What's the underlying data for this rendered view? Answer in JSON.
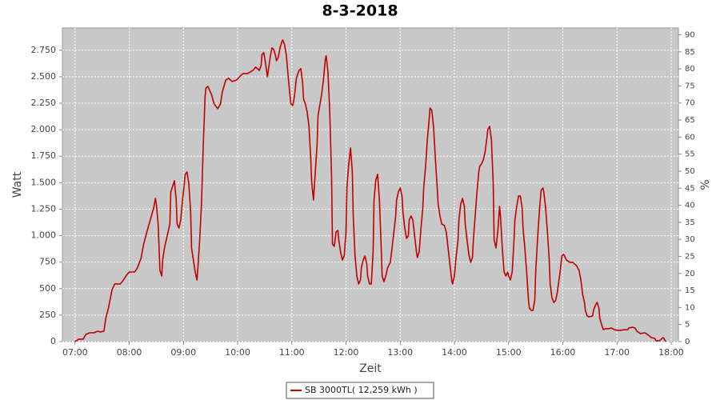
{
  "chart_data": {
    "type": "line",
    "title": "8-3-2018",
    "x_label": "Zeit",
    "y_label": "Watt",
    "y2_label": "%",
    "grid": true,
    "legend": "bottom",
    "xlim": [
      406,
      1088
    ],
    "xticks": [
      {
        "value": 420,
        "label": "07:00"
      },
      {
        "value": 480,
        "label": "08:00"
      },
      {
        "value": 540,
        "label": "09:00"
      },
      {
        "value": 600,
        "label": "10:00"
      },
      {
        "value": 660,
        "label": "11:00"
      },
      {
        "value": 720,
        "label": "12:00"
      },
      {
        "value": 780,
        "label": "13:00"
      },
      {
        "value": 840,
        "label": "14:00"
      },
      {
        "value": 900,
        "label": "15:00"
      },
      {
        "value": 960,
        "label": "16:00"
      },
      {
        "value": 1020,
        "label": "17:00"
      },
      {
        "value": 1080,
        "label": "18:00"
      }
    ],
    "ylim": [
      0,
      2960
    ],
    "yticks": [
      0,
      250,
      500,
      750,
      {
        "value": 1000,
        "label": "1.000"
      },
      {
        "value": 1250,
        "label": "1.250"
      },
      {
        "value": 1500,
        "label": "1.500"
      },
      {
        "value": 1750,
        "label": "1.750"
      },
      {
        "value": 2000,
        "label": "2.000"
      },
      {
        "value": 2250,
        "label": "2.250"
      },
      {
        "value": 2500,
        "label": "2.500"
      },
      {
        "value": 2750,
        "label": "2.750"
      }
    ],
    "y2lim": [
      0,
      92
    ],
    "y2ticks": [
      0,
      5,
      10,
      15,
      20,
      25,
      30,
      35,
      40,
      45,
      50,
      55,
      60,
      65,
      70,
      75,
      80,
      85,
      90
    ],
    "x": [
      420,
      424,
      429,
      432,
      436,
      441,
      445,
      448,
      452,
      454,
      457,
      461,
      464,
      470,
      473,
      477,
      480,
      486,
      489,
      493,
      496,
      500,
      503,
      507,
      509,
      510,
      512,
      514,
      516,
      517,
      519,
      523,
      525,
      526,
      530,
      532,
      533,
      535,
      537,
      539,
      541,
      542,
      544,
      546,
      548,
      549,
      553,
      555,
      556,
      558,
      560,
      562,
      564,
      565,
      567,
      571,
      574,
      578,
      581,
      583,
      587,
      590,
      594,
      599,
      603,
      606,
      611,
      617,
      620,
      624,
      626,
      627,
      629,
      631,
      633,
      634,
      636,
      638,
      640,
      642,
      643,
      645,
      647,
      649,
      650,
      652,
      654,
      656,
      658,
      659,
      661,
      663,
      665,
      668,
      670,
      672,
      673,
      675,
      677,
      679,
      681,
      682,
      684,
      686,
      688,
      689,
      693,
      695,
      697,
      698,
      700,
      702,
      704,
      705,
      707,
      709,
      711,
      712,
      714,
      716,
      718,
      720,
      721,
      723,
      725,
      727,
      728,
      730,
      732,
      734,
      736,
      737,
      739,
      741,
      743,
      744,
      746,
      748,
      750,
      751,
      753,
      755,
      757,
      759,
      760,
      762,
      764,
      766,
      769,
      771,
      773,
      775,
      776,
      778,
      780,
      782,
      783,
      785,
      787,
      789,
      790,
      792,
      794,
      796,
      798,
      799,
      801,
      803,
      805,
      806,
      808,
      810,
      812,
      813,
      815,
      817,
      819,
      821,
      822,
      824,
      826,
      829,
      831,
      833,
      835,
      837,
      838,
      840,
      842,
      844,
      845,
      847,
      849,
      851,
      852,
      854,
      856,
      858,
      860,
      861,
      863,
      865,
      867,
      868,
      870,
      872,
      874,
      876,
      877,
      879,
      881,
      883,
      884,
      886,
      888,
      890,
      891,
      893,
      895,
      897,
      899,
      900,
      902,
      904,
      906,
      907,
      909,
      911,
      913,
      915,
      916,
      918,
      920,
      922,
      923,
      925,
      927,
      929,
      930,
      932,
      934,
      936,
      938,
      939,
      941,
      943,
      945,
      946,
      948,
      950,
      952,
      954,
      957,
      959,
      961,
      962,
      964,
      968,
      971,
      975,
      978,
      980,
      982,
      984,
      985,
      987,
      989,
      993,
      994,
      996,
      998,
      1000,
      1001,
      1003,
      1005,
      1007,
      1010,
      1014,
      1017,
      1021,
      1024,
      1028,
      1032,
      1033,
      1037,
      1040,
      1042,
      1046,
      1051,
      1055,
      1058,
      1062,
      1063,
      1067,
      1071,
      1072,
      1074
    ],
    "series": [
      {
        "name": "SB 3000TL( 12,259 kWh )",
        "color": "#c00000",
        "values": [
          0,
          23,
          23,
          68,
          83,
          83,
          98,
          91,
          98,
          219,
          317,
          491,
          544,
          544,
          574,
          627,
          657,
          657,
          695,
          785,
          921,
          1050,
          1140,
          1261,
          1352,
          1299,
          1110,
          672,
          619,
          770,
          884,
          1035,
          1110,
          1412,
          1518,
          1337,
          1110,
          1072,
          1148,
          1337,
          1488,
          1579,
          1601,
          1488,
          1224,
          884,
          657,
          582,
          695,
          959,
          1299,
          1865,
          2319,
          2394,
          2409,
          2334,
          2243,
          2198,
          2243,
          2356,
          2470,
          2485,
          2455,
          2470,
          2508,
          2530,
          2530,
          2560,
          2591,
          2560,
          2606,
          2712,
          2727,
          2621,
          2500,
          2560,
          2682,
          2772,
          2757,
          2697,
          2651,
          2682,
          2772,
          2832,
          2847,
          2802,
          2697,
          2500,
          2319,
          2243,
          2228,
          2319,
          2485,
          2560,
          2576,
          2440,
          2289,
          2243,
          2168,
          2032,
          1715,
          1503,
          1337,
          1601,
          1865,
          2130,
          2334,
          2470,
          2659,
          2697,
          2545,
          2168,
          1563,
          921,
          899,
          1035,
          1050,
          959,
          846,
          770,
          808,
          1035,
          1450,
          1677,
          1828,
          1601,
          1186,
          808,
          619,
          544,
          582,
          695,
          770,
          808,
          733,
          619,
          544,
          544,
          846,
          1337,
          1526,
          1579,
          1337,
          884,
          619,
          566,
          619,
          695,
          748,
          884,
          1035,
          1186,
          1337,
          1412,
          1450,
          1375,
          1224,
          1072,
          974,
          997,
          1148,
          1186,
          1148,
          997,
          846,
          793,
          846,
          1072,
          1261,
          1450,
          1639,
          1903,
          2092,
          2205,
          2183,
          2017,
          1715,
          1450,
          1299,
          1186,
          1110,
          1095,
          1035,
          884,
          733,
          582,
          544,
          619,
          808,
          959,
          1148,
          1299,
          1352,
          1276,
          1110,
          959,
          823,
          748,
          793,
          959,
          1186,
          1412,
          1601,
          1654,
          1677,
          1715,
          1790,
          1926,
          2002,
          2032,
          1903,
          1488,
          959,
          884,
          1035,
          1276,
          1186,
          884,
          657,
          619,
          657,
          619,
          582,
          657,
          959,
          1148,
          1276,
          1375,
          1375,
          1261,
          1072,
          884,
          657,
          393,
          317,
          295,
          295,
          393,
          657,
          959,
          1224,
          1428,
          1450,
          1412,
          1261,
          1035,
          770,
          544,
          415,
          370,
          385,
          468,
          657,
          808,
          823,
          808,
          770,
          748,
          748,
          718,
          672,
          582,
          446,
          370,
          295,
          242,
          234,
          242,
          295,
          340,
          370,
          317,
          219,
          159,
          113,
          121,
          121,
          128,
          113,
          106,
          106,
          113,
          113,
          128,
          136,
          128,
          98,
          76,
          83,
          60,
          38,
          30,
          8,
          8,
          38,
          30,
          0
        ]
      }
    ]
  }
}
